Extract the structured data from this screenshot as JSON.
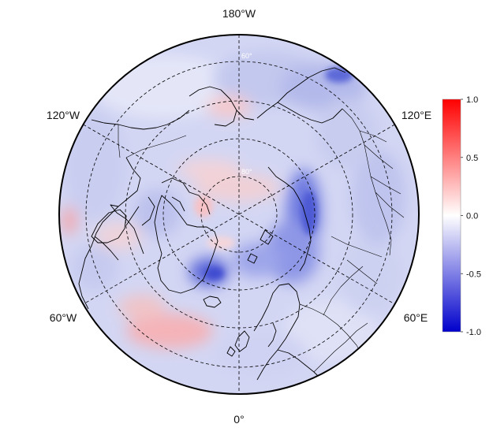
{
  "map": {
    "projection": "north-polar-stereographic",
    "colormap": [
      "#0000cc",
      "#ffffff",
      "#ff0000"
    ],
    "longitude_labels": [
      {
        "text": "180°W",
        "lon": 180
      },
      {
        "text": "120°E",
        "lon": 120
      },
      {
        "text": "60°E",
        "lon": 60
      },
      {
        "text": "0°",
        "lon": 0
      },
      {
        "text": "60°W",
        "lon": -60
      },
      {
        "text": "120°W",
        "lon": -120
      }
    ],
    "latitude_circles": [
      80,
      70,
      60,
      50,
      40
    ],
    "latitude_labels": [
      {
        "text": "80°",
        "lat": 80
      },
      {
        "text": "60°",
        "lat": 60
      }
    ],
    "meridian_interval_deg": 60
  },
  "colorbar": {
    "min": -1.0,
    "max": 1.0,
    "ticks": [
      {
        "value": 1.0,
        "label": "1.0"
      },
      {
        "value": 0.5,
        "label": "0.5"
      },
      {
        "value": 0.0,
        "label": "0.0"
      },
      {
        "value": -0.5,
        "label": "-0.5"
      },
      {
        "value": -1.0,
        "label": "-1.0"
      }
    ]
  }
}
